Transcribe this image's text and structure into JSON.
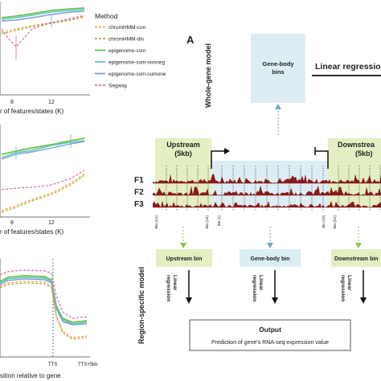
{
  "panel_letter": "A",
  "legend": {
    "title": "Method",
    "items": [
      {
        "label": "chromHMM-con",
        "color": "#e8a44a",
        "dash": "4 2"
      },
      {
        "label": "chromHMM-dis",
        "color": "#b9a23a",
        "dash": "4 2"
      },
      {
        "label": "epigenome-ssm",
        "color": "#6cc24a",
        "dash": ""
      },
      {
        "label": "epigenome-ssm-nonneg",
        "color": "#5ec8c0",
        "dash": ""
      },
      {
        "label": "epigenome-ssm-sumone",
        "color": "#7d9fd6",
        "dash": ""
      },
      {
        "label": "Segway",
        "color": "#d86fb0",
        "dash": "4 2"
      }
    ]
  },
  "left_charts": {
    "top_xtick": "8",
    "top_xtick2": "12",
    "top_xlabel": "r of features/states (K)",
    "mid_xtick": "8",
    "mid_xtick2": "12",
    "mid_xlabel": "r of features/states (K)",
    "bot_xtick1": "TTS",
    "bot_xtick2": "TTS+5kb",
    "bot_xlabel": "sition relative to gene"
  },
  "diagram": {
    "whole_gene_label": "Whole-gene model",
    "region_specific_label": "Region-specific model",
    "gene_body_bins_box": "Gene-body\nbins",
    "gene_body_bins_line1": "Gene-body",
    "gene_body_bins_line2": "bins",
    "linear_regression_top": "Linear regression",
    "upstream_label": "Upstream",
    "upstream_size": "(5kb)",
    "downstream_label": "Downstrea",
    "downstream_size": "(5kb)",
    "tracks": [
      "F1",
      "F2",
      "F3"
    ],
    "bin_labels": [
      "Bin (U1)",
      "Bin (U5)",
      "Bin (1)",
      "Bin (10)",
      "Bin (D1)"
    ],
    "region_boxes": [
      {
        "label": "Upstream bin"
      },
      {
        "label": "Gene-body bin"
      },
      {
        "label": "Downstream bin"
      }
    ],
    "linear_regression_small": "Linear\nregression",
    "linear_line1": "Linear",
    "linear_line2": "regression",
    "output_title": "Output",
    "output_text": "Prediction of gene's RNA-seq expression value"
  },
  "colors": {
    "green_region": "#e3efc3",
    "blue_box": "#dceef4",
    "track": "#8b1a1a",
    "green_arrow": "#8bc34a",
    "blue_arrow": "#6fa8c8"
  }
}
